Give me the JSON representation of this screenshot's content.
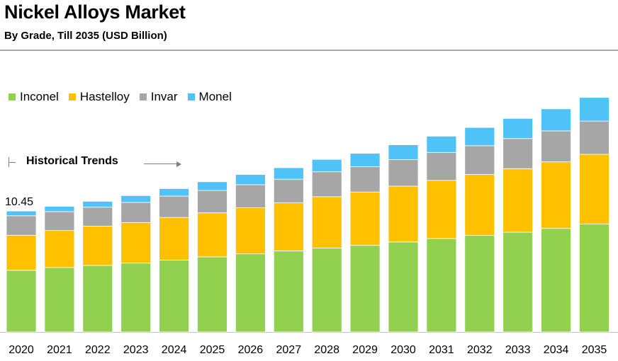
{
  "header": {
    "title": "Nickel Alloys Market",
    "subtitle": "By Grade, Till 2035 (USD Billion)"
  },
  "annotation": {
    "historical": "Historical Trends"
  },
  "chart_data": {
    "type": "stacked-bar",
    "title": "Nickel Alloys Market",
    "subtitle": "By Grade, Till 2035 (USD Billion)",
    "xlabel": "",
    "ylabel": "",
    "legend_position": "top-left",
    "grid": false,
    "categories": [
      "2020",
      "2021",
      "2022",
      "2023",
      "2024",
      "2025",
      "2026",
      "2027",
      "2028",
      "2029",
      "2030",
      "2031",
      "2032",
      "2033",
      "2034",
      "2035"
    ],
    "series": [
      {
        "name": "Inconel",
        "color": "#92d050",
        "values": [
          5.33,
          5.57,
          5.75,
          5.95,
          6.21,
          6.49,
          6.75,
          7.01,
          7.25,
          7.48,
          7.78,
          8.07,
          8.34,
          8.62,
          8.95,
          9.32
        ]
      },
      {
        "name": "Hastelloy",
        "color": "#ffc000",
        "values": [
          3.03,
          3.2,
          3.4,
          3.51,
          3.69,
          3.8,
          3.98,
          4.15,
          4.44,
          4.62,
          4.82,
          5.03,
          5.27,
          5.49,
          5.75,
          6.03
        ]
      },
      {
        "name": "Invar",
        "color": "#a6a6a6",
        "values": [
          1.68,
          1.63,
          1.63,
          1.73,
          1.84,
          1.94,
          2.0,
          2.04,
          2.15,
          2.19,
          2.3,
          2.42,
          2.49,
          2.6,
          2.68,
          2.87
        ]
      },
      {
        "name": "Monel",
        "color": "#4fc3f7",
        "values": [
          0.41,
          0.45,
          0.51,
          0.59,
          0.65,
          0.75,
          0.88,
          0.99,
          1.07,
          1.15,
          1.27,
          1.4,
          1.57,
          1.74,
          1.9,
          2.04
        ]
      }
    ],
    "totals": [
      10.45,
      10.85,
      11.29,
      11.78,
      12.39,
      12.98,
      13.61,
      14.19,
      14.91,
      15.44,
      16.17,
      16.92,
      17.67,
      18.45,
      19.28,
      20.26
    ],
    "data_labels": [
      {
        "category": "2020",
        "text": "10.45"
      }
    ],
    "ylim": [
      0,
      20.5
    ]
  }
}
